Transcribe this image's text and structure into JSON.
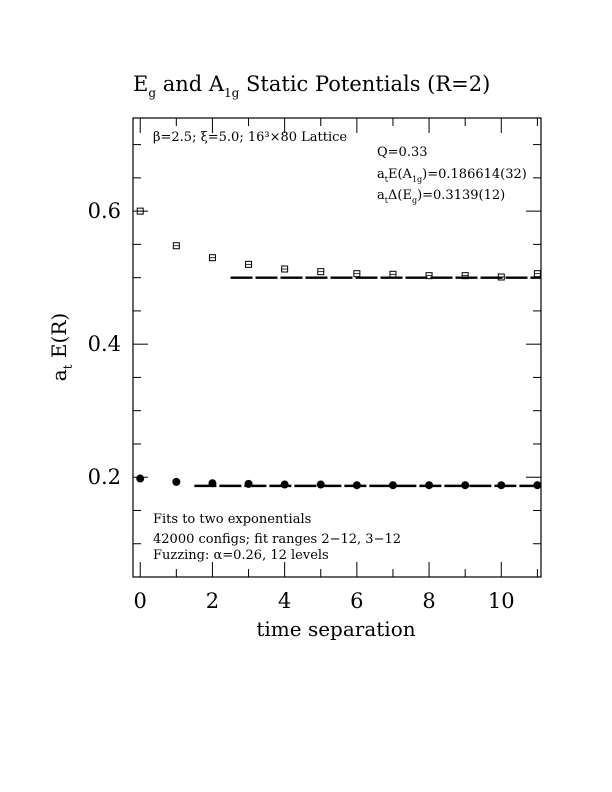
{
  "chart_data": {
    "type": "scatter",
    "title": {
      "prefix": "E",
      "prefix_sub": "g",
      "mid": " and A",
      "mid_sub": "1g",
      "suffix": " Static Potentials (R=2)"
    },
    "xlabel": "time separation",
    "ylabel": {
      "main": "a",
      "sub": "t",
      "rest": " E(R)"
    },
    "xlim": [
      -0.2,
      11.1
    ],
    "ylim": [
      0.05,
      0.74
    ],
    "xticks": [
      "0",
      "2",
      "4",
      "6",
      "8",
      "10"
    ],
    "yticks": [
      "0.2",
      "0.4",
      "0.6"
    ],
    "grid": false,
    "lattice_text": "β=2.5; ξ=5.0; 16³×80 Lattice",
    "fit_info": {
      "q": "Q=0.33",
      "energy_a1g": {
        "a": "a",
        "t": "t",
        "mid": "E(A",
        "sub": "1g",
        "val": ")=0.186614(32)"
      },
      "delta_eg": {
        "a": "a",
        "t": "t",
        "mid": "Δ(E",
        "sub": "g",
        "val": ")=0.3139(12)"
      }
    },
    "notes": [
      "Fits to two exponentials",
      "42000 configs; fit ranges 2−12, 3−12",
      "Fuzzing: α=0.26, 12 levels"
    ],
    "series": [
      {
        "marker": "open-square",
        "x": [
          0,
          1,
          2,
          3,
          4,
          5,
          6,
          7,
          8,
          9,
          10,
          11
        ],
        "y": [
          0.6,
          0.548,
          0.53,
          0.52,
          0.513,
          0.509,
          0.506,
          0.505,
          0.503,
          0.503,
          0.501,
          0.506
        ],
        "fit": {
          "x0": 2.5,
          "x1": 11.1,
          "y": 0.5
        }
      },
      {
        "marker": "filled-circle",
        "x": [
          0,
          1,
          2,
          3,
          4,
          5,
          6,
          7,
          8,
          9,
          10,
          11
        ],
        "y": [
          0.198,
          0.193,
          0.191,
          0.19,
          0.189,
          0.189,
          0.188,
          0.188,
          0.188,
          0.188,
          0.188,
          0.188
        ],
        "fit": {
          "x0": 1.5,
          "x1": 11.1,
          "y": 0.187
        }
      }
    ]
  }
}
